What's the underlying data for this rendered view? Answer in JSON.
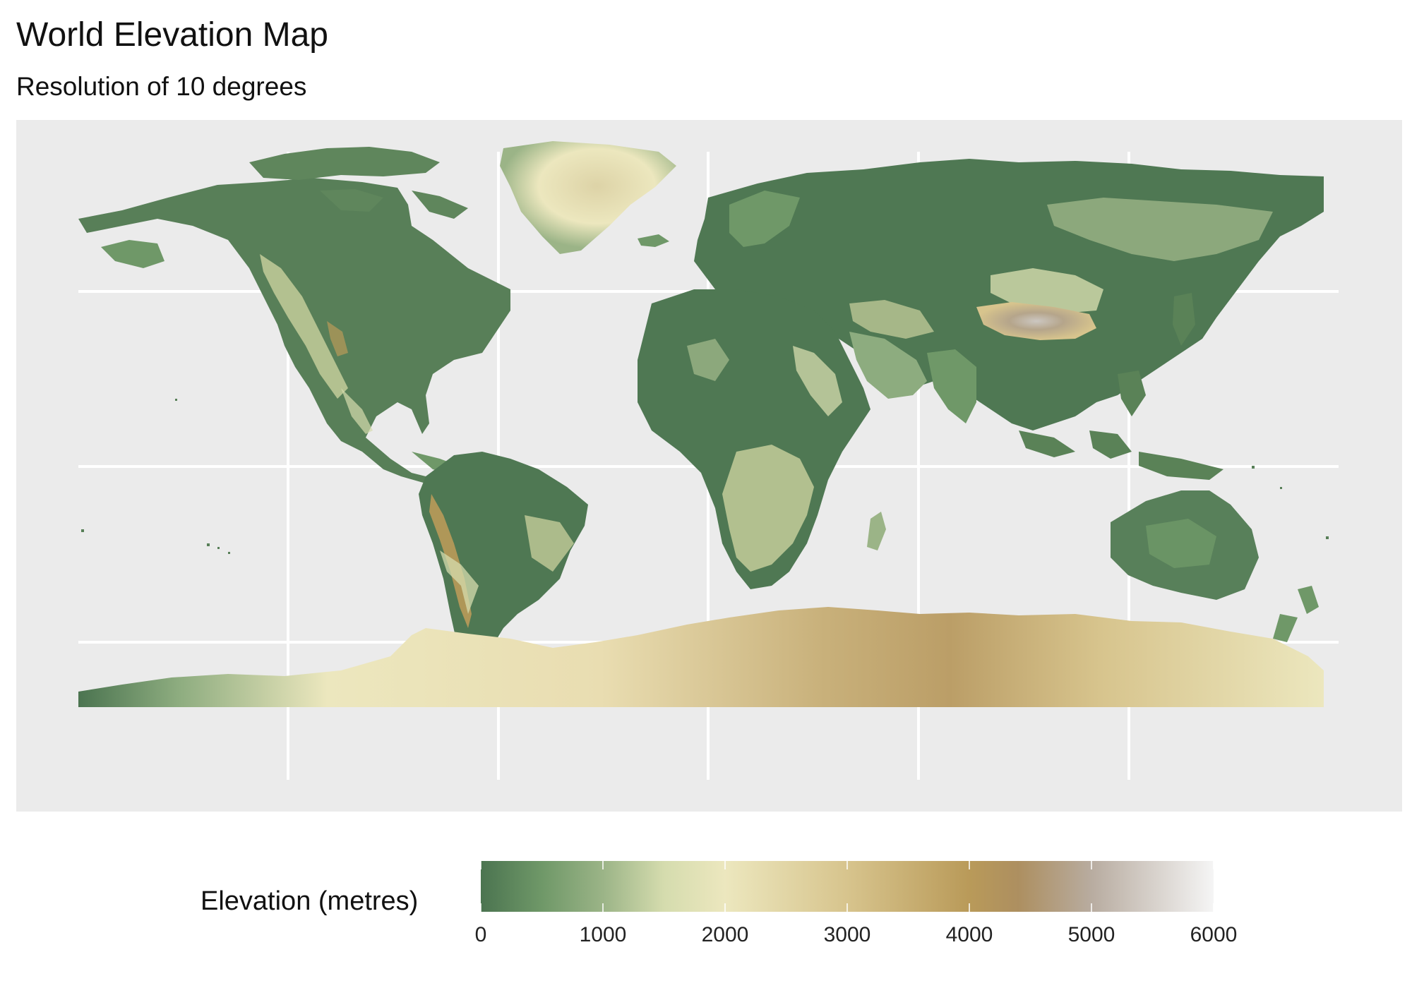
{
  "title": "World Elevation Map",
  "subtitle": "Resolution of 10 degrees",
  "map": {
    "panel_color": "#ebebeb",
    "grid_color": "#ffffff",
    "ocean_color": "#ebebeb",
    "gradient_stops": [
      {
        "value": 0,
        "color": "#4b7450"
      },
      {
        "value": 500,
        "color": "#6f9868"
      },
      {
        "value": 1000,
        "color": "#9bb487"
      },
      {
        "value": 1500,
        "color": "#d5dcae"
      },
      {
        "value": 2000,
        "color": "#ece7be"
      },
      {
        "value": 3000,
        "color": "#d7c48d"
      },
      {
        "value": 4000,
        "color": "#b99a59"
      },
      {
        "value": 4400,
        "color": "#ad8f60"
      },
      {
        "value": 5000,
        "color": "#b8aca0"
      },
      {
        "value": 6000,
        "color": "#f5f5f5"
      }
    ]
  },
  "legend": {
    "title": "Elevation (metres)",
    "min": 0,
    "max": 6000,
    "ticks": [
      "0",
      "1000",
      "2000",
      "3000",
      "4000",
      "5000",
      "6000"
    ]
  }
}
